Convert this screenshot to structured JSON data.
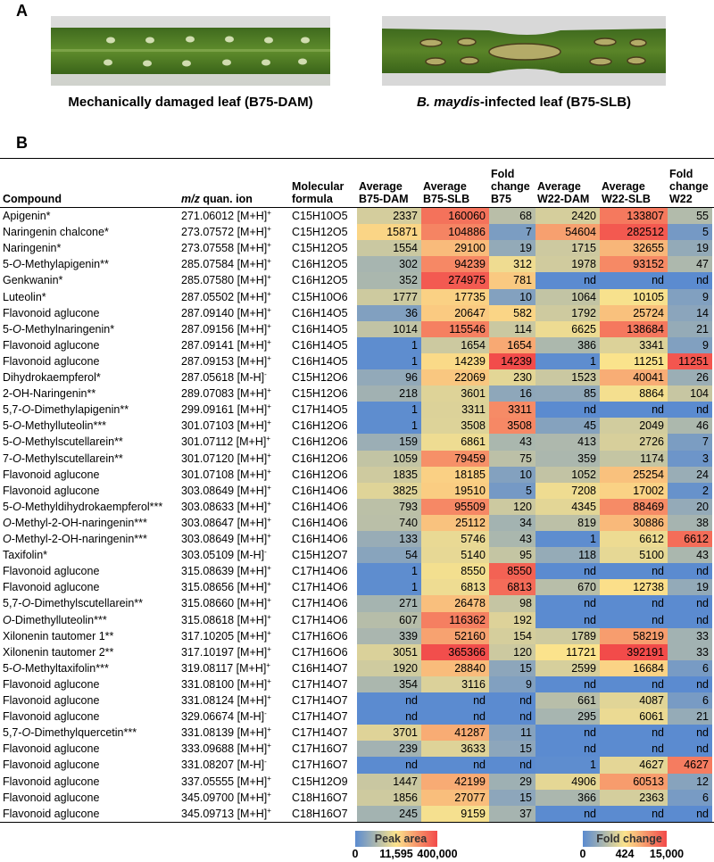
{
  "panel_a": {
    "label": "A",
    "caption_left": "Mechanically damaged leaf (B75-DAM)",
    "caption_right": {
      "italic": "B. maydis",
      "text": "-infected leaf (B75-SLB)"
    }
  },
  "panel_b": {
    "label": "B"
  },
  "table": {
    "header": [
      [
        "Compound"
      ],
      {
        "italic": "m/z",
        "text": " quan. ion"
      },
      [
        "Molecular",
        "formula"
      ],
      [
        "Average",
        "B75-DAM"
      ],
      [
        "Average",
        "B75-SLB"
      ],
      [
        "Fold",
        "change",
        "B75"
      ],
      [
        "Average",
        "W22-DAM"
      ],
      [
        "Average",
        "W22-SLB"
      ],
      [
        "Fold",
        "change",
        "W22"
      ]
    ],
    "rows": [
      [
        "Apigenin*",
        "271.06012",
        "[M+H]+",
        "C15H10O5",
        2337,
        160060,
        68,
        2420,
        133807,
        55
      ],
      [
        "Naringenin chalcone*",
        "273.07572",
        "[M+H]+",
        "C15H12O5",
        15871,
        104886,
        7,
        54604,
        282512,
        5
      ],
      [
        "Naringenin*",
        "273.07558",
        "[M+H]+",
        "C15H12O5",
        1554,
        29100,
        19,
        1715,
        32655,
        19
      ],
      [
        "5-O-Methylapigenin**",
        "285.07584",
        "[M+H]+",
        "C16H12O5",
        302,
        94239,
        312,
        1978,
        93152,
        47
      ],
      [
        "Genkwanin*",
        "285.07580",
        "[M+H]+",
        "C16H12O5",
        352,
        274975,
        781,
        "nd",
        "nd",
        "nd"
      ],
      [
        "Luteolin*",
        "287.05502",
        "[M+H]+",
        "C15H10O6",
        1777,
        17735,
        10,
        1064,
        10105,
        9
      ],
      [
        "Flavonoid aglucone",
        "287.09140",
        "[M+H]+",
        "C16H14O5",
        36,
        20647,
        582,
        1792,
        25724,
        14
      ],
      [
        "5-O-Methylnaringenin*",
        "287.09156",
        "[M+H]+",
        "C16H14O5",
        1014,
        115546,
        114,
        6625,
        138684,
        21
      ],
      [
        "Flavonoid aglucone",
        "287.09141",
        "[M+H]+",
        "C16H14O5",
        1,
        1654,
        1654,
        386,
        3341,
        9
      ],
      [
        "Flavonoid aglucone",
        "287.09153",
        "[M+H]+",
        "C16H14O5",
        1,
        14239,
        14239,
        1,
        11251,
        11251
      ],
      [
        "Dihydrokaempferol*",
        "287.05618",
        "[M-H]-",
        "C15H12O6",
        96,
        22069,
        230,
        1523,
        40041,
        26
      ],
      [
        "2-OH-Naringenin**",
        "289.07083",
        "[M+H]+",
        "C15H12O6",
        218,
        3601,
        16,
        85,
        8864,
        104
      ],
      [
        "5,7-O-Dimethylapigenin**",
        "299.09161",
        "[M+H]+",
        "C17H14O5",
        1,
        3311,
        3311,
        "nd",
        "nd",
        "nd"
      ],
      [
        "5-O-Methylluteolin***",
        "301.07103",
        "[M+H]+",
        "C16H12O6",
        1,
        3508,
        3508,
        45,
        2049,
        46
      ],
      [
        "5-O-Methylscutellarein**",
        "301.07112",
        "[M+H]+",
        "C16H12O6",
        159,
        6861,
        43,
        413,
        2726,
        7
      ],
      [
        "7-O-Methylscutellarein**",
        "301.07120",
        "[M+H]+",
        "C16H12O6",
        1059,
        79459,
        75,
        359,
        1174,
        3
      ],
      [
        "Flavonoid aglucone",
        "301.07108",
        "[M+H]+",
        "C16H12O6",
        1835,
        18185,
        10,
        1052,
        25254,
        24
      ],
      [
        "Flavonoid aglucone",
        "303.08649",
        "[M+H]+",
        "C16H14O6",
        3825,
        19510,
        5,
        7208,
        17002,
        2
      ],
      [
        "5-O-Methyldihydrokaempferol***",
        "303.08633",
        "[M+H]+",
        "C16H14O6",
        793,
        95509,
        120,
        4345,
        88469,
        20
      ],
      [
        "O-Methyl-2-OH-naringenin***",
        "303.08647",
        "[M+H]+",
        "C16H14O6",
        740,
        25112,
        34,
        819,
        30886,
        38
      ],
      [
        "O-Methyl-2-OH-naringenin***",
        "303.08649",
        "[M+H]+",
        "C16H14O6",
        133,
        5746,
        43,
        1,
        6612,
        6612
      ],
      [
        "Taxifolin*",
        "303.05109",
        "[M-H]-",
        "C15H12O7",
        54,
        5140,
        95,
        118,
        5100,
        43
      ],
      [
        "Flavonoid aglucone",
        "315.08639",
        "[M+H]+",
        "C17H14O6",
        1,
        8550,
        8550,
        "nd",
        "nd",
        "nd"
      ],
      [
        "Flavonoid aglucone",
        "315.08656",
        "[M+H]+",
        "C17H14O6",
        1,
        6813,
        6813,
        670,
        12738,
        19
      ],
      [
        "5,7-O-Dimethylscutellarein**",
        "315.08660",
        "[M+H]+",
        "C17H14O6",
        271,
        26478,
        98,
        "nd",
        "nd",
        "nd"
      ],
      [
        "O-Dimethylluteolin***",
        "315.08618",
        "[M+H]+",
        "C17H14O6",
        607,
        116362,
        192,
        "nd",
        "nd",
        "nd"
      ],
      [
        "Xilonenin tautomer 1**",
        "317.10205",
        "[M+H]+",
        "C17H16O6",
        339,
        52160,
        154,
        1789,
        58219,
        33
      ],
      [
        "Xilonenin tautomer 2**",
        "317.10197",
        "[M+H]+",
        "C17H16O6",
        3051,
        365366,
        120,
        11721,
        392191,
        33
      ],
      [
        "5-O-Methyltaxifolin***",
        "319.08117",
        "[M+H]+",
        "C16H14O7",
        1920,
        28840,
        15,
        2599,
        16684,
        6
      ],
      [
        "Flavonoid aglucone",
        "331.08100",
        "[M+H]+",
        "C17H14O7",
        354,
        3116,
        9,
        "nd",
        "nd",
        "nd"
      ],
      [
        "Flavonoid aglucone",
        "331.08124",
        "[M+H]+",
        "C17H14O7",
        "nd",
        "nd",
        "nd",
        661,
        4087,
        6
      ],
      [
        "Flavonoid aglucone",
        "329.06674",
        "[M-H]-",
        "C17H14O7",
        "nd",
        "nd",
        "nd",
        295,
        6061,
        21
      ],
      [
        "5,7-O-Dimethylquercetin***",
        "331.08139",
        "[M+H]+",
        "C17H14O7",
        3701,
        41287,
        11,
        "nd",
        "nd",
        "nd"
      ],
      [
        "Flavonoid aglucone",
        "333.09688",
        "[M+H]+",
        "C17H16O7",
        239,
        3633,
        15,
        "nd",
        "nd",
        "nd"
      ],
      [
        "Flavonoid aglucone",
        "331.08207",
        "[M-H]-",
        "C17H16O7",
        "nd",
        "nd",
        "nd",
        1,
        4627,
        4627
      ],
      [
        "Flavonoid aglucone",
        "337.05555",
        "[M+H]+",
        "C15H12O9",
        1447,
        42199,
        29,
        4906,
        60513,
        12
      ],
      [
        "Flavonoid aglucone",
        "345.09700",
        "[M+H]+",
        "C18H16O7",
        1856,
        27077,
        15,
        366,
        2363,
        6
      ],
      [
        "Flavonoid aglucone",
        "345.09713",
        "[M+H]+",
        "C18H16O7",
        245,
        9159,
        37,
        "nd",
        "nd",
        "nd"
      ]
    ]
  },
  "legends": [
    {
      "title": "Peak area",
      "ticks": [
        0,
        {
          "value": 11595,
          "label": "11,595"
        },
        {
          "value": 400000,
          "label": "400,000"
        }
      ],
      "colors": [
        "#5b8bd0",
        "#fbe38c",
        "#f24a4a"
      ]
    },
    {
      "title": "Fold change",
      "ticks": [
        0,
        424,
        {
          "value": 15000,
          "label": "15,000"
        }
      ],
      "colors": [
        "#5b8bd0",
        "#fbe38c",
        "#f24a4a"
      ]
    }
  ]
}
